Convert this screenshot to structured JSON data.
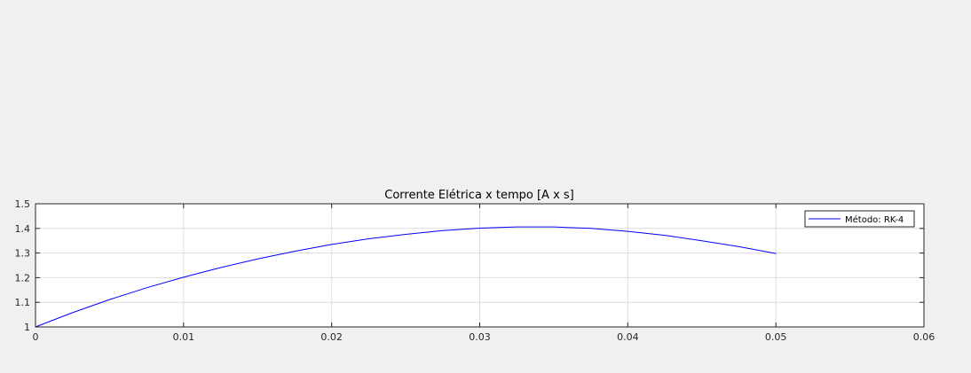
{
  "chart_data": {
    "type": "line",
    "title": "Corrente Elétrica x tempo [A x s]",
    "xlabel": "",
    "ylabel": "",
    "xlim": [
      0,
      0.06
    ],
    "ylim": [
      1,
      1.5
    ],
    "xticks": [
      0,
      0.01,
      0.02,
      0.03,
      0.04,
      0.05,
      0.06
    ],
    "xtick_labels": [
      "0",
      "0.01",
      "0.02",
      "0.03",
      "0.04",
      "0.05",
      "0.06"
    ],
    "yticks": [
      1,
      1.1,
      1.2,
      1.3,
      1.4,
      1.5
    ],
    "ytick_labels": [
      "1",
      "1.1",
      "1.2",
      "1.3",
      "1.4",
      "1.5"
    ],
    "grid": true,
    "legend_position": "top-right",
    "series": [
      {
        "name": "Método: RK-4",
        "color": "#0000ff",
        "x": [
          0,
          0.0025,
          0.005,
          0.0075,
          0.01,
          0.0125,
          0.015,
          0.0175,
          0.02,
          0.0225,
          0.025,
          0.0275,
          0.03,
          0.0325,
          0.035,
          0.0375,
          0.04,
          0.0425,
          0.045,
          0.0475,
          0.05
        ],
        "y": [
          1.0,
          1.058,
          1.111,
          1.159,
          1.202,
          1.241,
          1.276,
          1.307,
          1.335,
          1.358,
          1.376,
          1.391,
          1.401,
          1.406,
          1.406,
          1.4,
          1.388,
          1.372,
          1.35,
          1.326,
          1.298
        ]
      }
    ]
  }
}
